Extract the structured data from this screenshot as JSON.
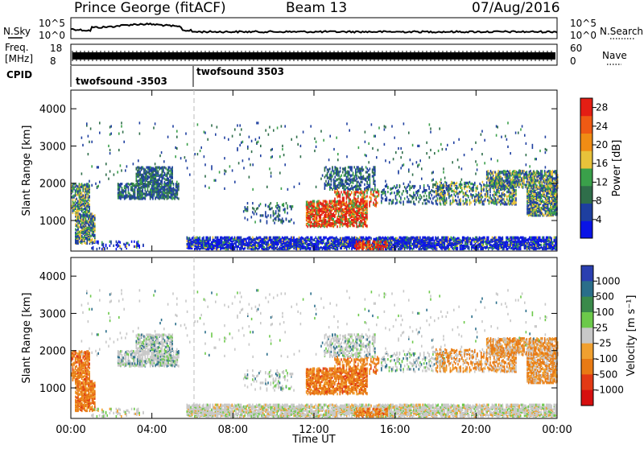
{
  "header": {
    "station": "Prince George (fitACF)",
    "beam": "Beam 13",
    "date": "07/Aug/2016"
  },
  "left_labels": {
    "nsky": "N.Sky",
    "freq_line1": "Freq.",
    "freq_line2": "[MHz]",
    "cpid": "CPID"
  },
  "right_labels": {
    "nsearch": "N.Search",
    "nave": "Nave"
  },
  "scale_labels": {
    "noise_top": "10^5",
    "noise_bottom": "10^0",
    "freq_top": "18",
    "freq_bottom": "8",
    "nave_top": "60",
    "nave_bottom": "0"
  },
  "cpid_segments": [
    {
      "label": "twofsound -3503",
      "start_hour": 0
    },
    {
      "label": "twofsound 3503",
      "start_hour": 6
    }
  ],
  "colors": {
    "power_scale": [
      "#0a14e6",
      "#1e3fa0",
      "#2f6e4a",
      "#3aa04a",
      "#e8c23a",
      "#f08c14",
      "#ef5a14",
      "#e41e14"
    ],
    "velocity_scale": [
      "#2a3fb0",
      "#2a6e8a",
      "#3a8a4a",
      "#6cc94a",
      "#c8c8c8",
      "#f0a030",
      "#e87a14",
      "#e23a14",
      "#d60f0f"
    ]
  },
  "chart_data": [
    {
      "type": "heatmap",
      "name_hint": "power panel",
      "xlabel": "Time UT",
      "ylabel": "Slant Range [km]",
      "xlim": [
        0,
        24
      ],
      "ylim": [
        180,
        4500
      ],
      "x_ticks": [
        "00:00",
        "04:00",
        "08:00",
        "12:00",
        "16:00",
        "20:00",
        "00:00"
      ],
      "y_ticks": [
        "1000",
        "2000",
        "3000",
        "4000"
      ],
      "colorbar_label": "Power [dB]",
      "colorbar_ticks": [
        "4",
        "8",
        "12",
        "16",
        "20",
        "24",
        "28"
      ],
      "colorbar_range": [
        0,
        30
      ]
    },
    {
      "type": "heatmap",
      "name_hint": "velocity panel",
      "xlabel": "Time UT",
      "ylabel": "Slant Range [km]",
      "xlim": [
        0,
        24
      ],
      "ylim": [
        180,
        4500
      ],
      "x_ticks": [
        "00:00",
        "04:00",
        "08:00",
        "12:00",
        "16:00",
        "20:00",
        "00:00"
      ],
      "y_ticks": [
        "1000",
        "2000",
        "3000",
        "4000"
      ],
      "colorbar_label": "Velocity [m s⁻¹]",
      "colorbar_ticks": [
        "1000",
        "500",
        "100",
        "25",
        "-25",
        "-100",
        "-500",
        "-1000"
      ]
    }
  ],
  "axis_title": "Time UT"
}
